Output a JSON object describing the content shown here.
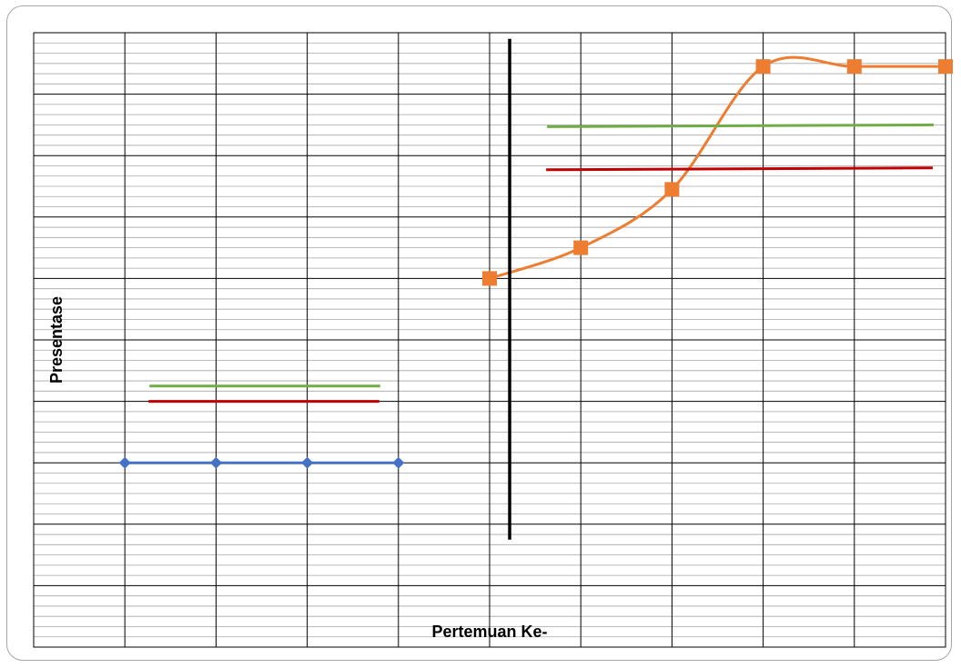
{
  "chart_data": {
    "type": "line",
    "title": "",
    "xlabel": "Pertemuan Ke-",
    "ylabel": "Presentase",
    "grid": true,
    "legend": "none",
    "x": [
      0,
      1,
      2,
      3,
      4,
      5,
      6,
      7,
      8,
      9,
      10
    ],
    "ylim": [
      0,
      100
    ],
    "series": [
      {
        "color": "#4472c4",
        "marker": "diamond",
        "points": [
          [
            1,
            30
          ],
          [
            2,
            30
          ],
          [
            3,
            30
          ],
          [
            4,
            30
          ]
        ]
      },
      {
        "color": "#ed7d31",
        "marker": "square",
        "smooth": true,
        "points": [
          [
            5,
            60
          ],
          [
            6,
            65
          ],
          [
            7,
            74.5
          ],
          [
            8,
            94.5
          ],
          [
            9,
            94.5
          ],
          [
            10,
            94.5
          ]
        ]
      },
      {
        "color": "#70ad47",
        "marker": "none",
        "points": [
          [
            1.27,
            42.5
          ],
          [
            3.8,
            42.5
          ]
        ]
      },
      {
        "color": "#c00000",
        "marker": "none",
        "points": [
          [
            1.26,
            40
          ],
          [
            3.79,
            40
          ]
        ]
      },
      {
        "color": "#70ad47",
        "marker": "none",
        "points": [
          [
            5.63,
            84.7
          ],
          [
            9.87,
            85
          ]
        ]
      },
      {
        "color": "#c00000",
        "marker": "none",
        "points": [
          [
            5.62,
            77.7
          ],
          [
            9.86,
            78
          ]
        ]
      },
      {
        "color": "#000000",
        "marker": "none",
        "points": [
          [
            5.22,
            99
          ],
          [
            5.22,
            17.5
          ]
        ]
      }
    ]
  }
}
